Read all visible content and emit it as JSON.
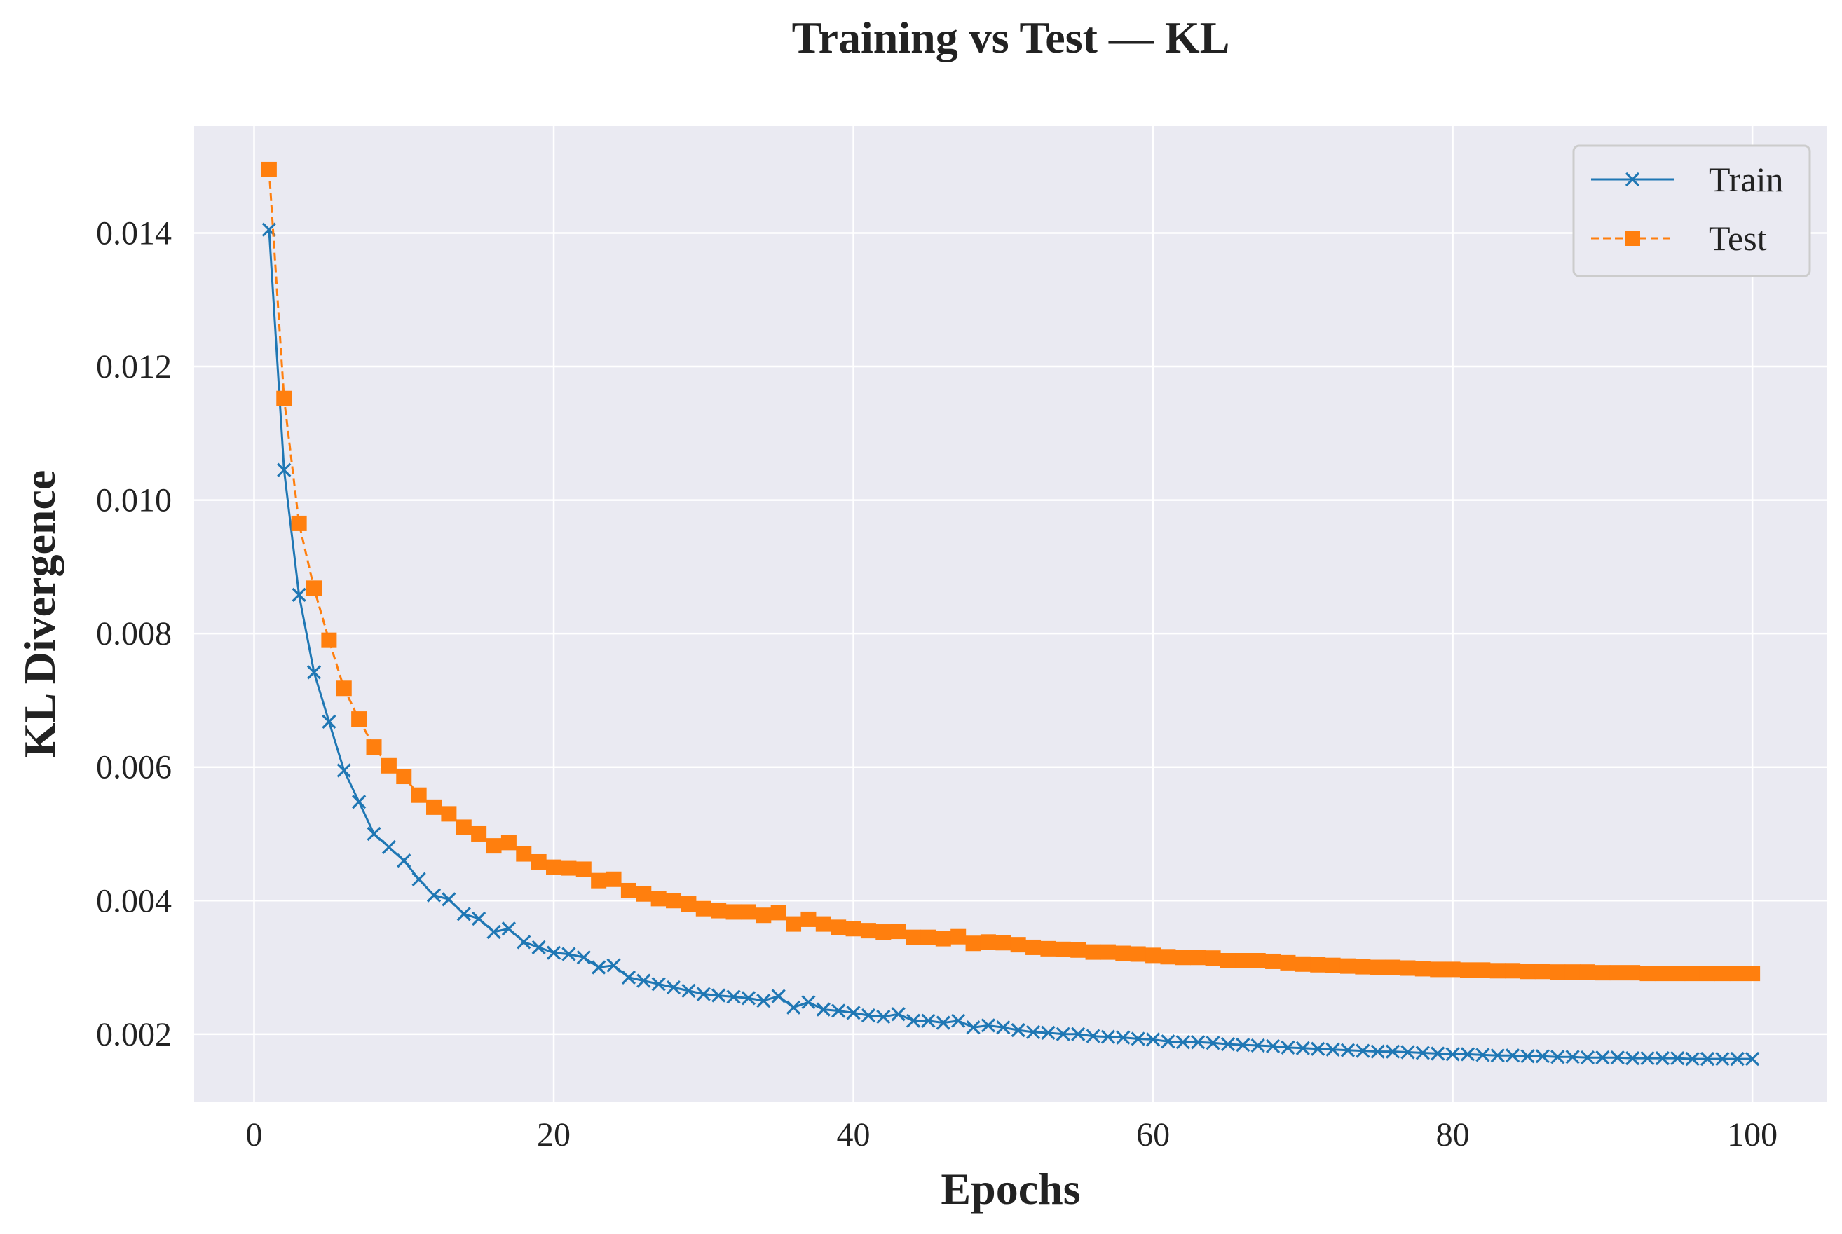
{
  "chart_data": {
    "type": "line",
    "title": "Training vs Test — KL",
    "xlabel": "Epochs",
    "ylabel": "KL Divergence",
    "xlim": [
      -4,
      105
    ],
    "ylim": [
      0.00098,
      0.0156
    ],
    "xticks": [
      0,
      20,
      40,
      60,
      80,
      100
    ],
    "xtick_labels": [
      "0",
      "20",
      "40",
      "60",
      "80",
      "100"
    ],
    "yticks": [
      0.002,
      0.004,
      0.006,
      0.008,
      0.01,
      0.012,
      0.014
    ],
    "ytick_labels": [
      "0.002",
      "0.004",
      "0.006",
      "0.008",
      "0.010",
      "0.012",
      "0.014"
    ],
    "grid": true,
    "legend_position": "top-right",
    "background": "#eaeaf2",
    "x": [
      1,
      2,
      3,
      4,
      5,
      6,
      7,
      8,
      9,
      10,
      11,
      12,
      13,
      14,
      15,
      16,
      17,
      18,
      19,
      20,
      21,
      22,
      23,
      24,
      25,
      26,
      27,
      28,
      29,
      30,
      31,
      32,
      33,
      34,
      35,
      36,
      37,
      38,
      39,
      40,
      41,
      42,
      43,
      44,
      45,
      46,
      47,
      48,
      49,
      50,
      51,
      52,
      53,
      54,
      55,
      56,
      57,
      58,
      59,
      60,
      61,
      62,
      63,
      64,
      65,
      66,
      67,
      68,
      69,
      70,
      71,
      72,
      73,
      74,
      75,
      76,
      77,
      78,
      79,
      80,
      81,
      82,
      83,
      84,
      85,
      86,
      87,
      88,
      89,
      90,
      91,
      92,
      93,
      94,
      95,
      96,
      97,
      98,
      99,
      100
    ],
    "series": [
      {
        "name": "Train",
        "color": "#1f77b4",
        "line_style": "solid",
        "marker": "x",
        "values": [
          0.01405,
          0.01045,
          0.00858,
          0.00742,
          0.00668,
          0.00595,
          0.00548,
          0.005,
          0.0048,
          0.0046,
          0.00432,
          0.00408,
          0.00402,
          0.0038,
          0.00373,
          0.00353,
          0.00358,
          0.00338,
          0.0033,
          0.00322,
          0.0032,
          0.00315,
          0.003,
          0.00303,
          0.00285,
          0.0028,
          0.00275,
          0.0027,
          0.00265,
          0.0026,
          0.00258,
          0.00256,
          0.00254,
          0.0025,
          0.00257,
          0.0024,
          0.00248,
          0.00237,
          0.00235,
          0.00232,
          0.00228,
          0.00226,
          0.0023,
          0.0022,
          0.0022,
          0.00217,
          0.0022,
          0.0021,
          0.00213,
          0.0021,
          0.00206,
          0.00203,
          0.00202,
          0.002,
          0.002,
          0.00197,
          0.00196,
          0.00195,
          0.00193,
          0.00192,
          0.00189,
          0.00188,
          0.00188,
          0.00187,
          0.00185,
          0.00184,
          0.00183,
          0.00182,
          0.0018,
          0.00179,
          0.00178,
          0.00177,
          0.00176,
          0.00175,
          0.00174,
          0.00174,
          0.00173,
          0.00172,
          0.00171,
          0.0017,
          0.0017,
          0.00169,
          0.00168,
          0.00168,
          0.00167,
          0.00167,
          0.00166,
          0.00166,
          0.00165,
          0.00165,
          0.00165,
          0.00164,
          0.00164,
          0.00164,
          0.00164,
          0.00163,
          0.00163,
          0.00163,
          0.00163,
          0.00163
        ]
      },
      {
        "name": "Test",
        "color": "#ff7f0e",
        "line_style": "dashed",
        "marker": "square",
        "values": [
          0.01495,
          0.01152,
          0.00965,
          0.00868,
          0.0079,
          0.00718,
          0.00672,
          0.0063,
          0.00602,
          0.00586,
          0.00558,
          0.0054,
          0.0053,
          0.0051,
          0.005,
          0.00482,
          0.00487,
          0.0047,
          0.00458,
          0.0045,
          0.00449,
          0.00447,
          0.0043,
          0.00432,
          0.00415,
          0.0041,
          0.00403,
          0.004,
          0.00395,
          0.00388,
          0.00385,
          0.00383,
          0.00383,
          0.00378,
          0.00382,
          0.00365,
          0.00372,
          0.00365,
          0.0036,
          0.00358,
          0.00355,
          0.00353,
          0.00354,
          0.00345,
          0.00345,
          0.00343,
          0.00346,
          0.00336,
          0.00338,
          0.00337,
          0.00334,
          0.0033,
          0.00328,
          0.00327,
          0.00326,
          0.00323,
          0.00323,
          0.00321,
          0.0032,
          0.00318,
          0.00316,
          0.00315,
          0.00315,
          0.00314,
          0.0031,
          0.0031,
          0.0031,
          0.00309,
          0.00307,
          0.00305,
          0.00304,
          0.00303,
          0.00302,
          0.00301,
          0.003,
          0.003,
          0.00299,
          0.00298,
          0.00297,
          0.00297,
          0.00296,
          0.00296,
          0.00295,
          0.00295,
          0.00294,
          0.00294,
          0.00293,
          0.00293,
          0.00293,
          0.00292,
          0.00292,
          0.00292,
          0.00291,
          0.00291,
          0.00291,
          0.00291,
          0.00291,
          0.00291,
          0.00291,
          0.00291
        ]
      }
    ]
  }
}
